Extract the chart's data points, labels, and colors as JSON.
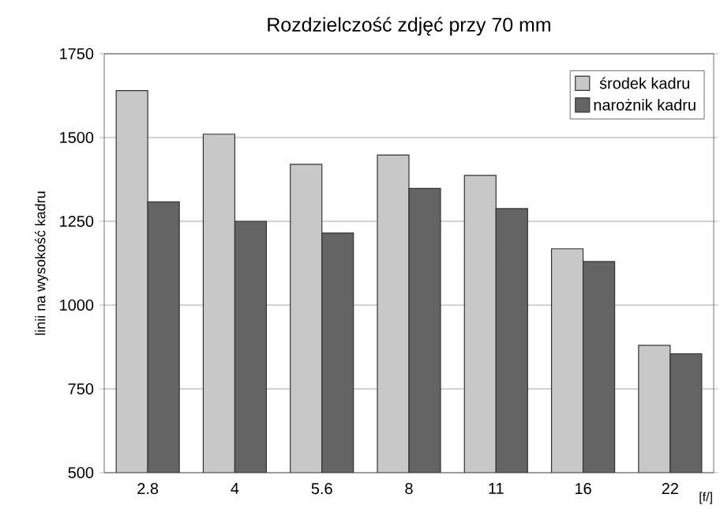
{
  "chart_data": {
    "type": "bar",
    "title": "Rozdzielczość zdjęć przy 70 mm",
    "xlabel": "[f/]",
    "ylabel": "linii na wysokość kadru",
    "categories": [
      "2.8",
      "4",
      "5.6",
      "8",
      "11",
      "16",
      "22"
    ],
    "series": [
      {
        "name": "środek kadru",
        "color": "#c8c8c8",
        "values": [
          1640,
          1510,
          1420,
          1448,
          1387,
          1168,
          880
        ]
      },
      {
        "name": "narożnik kadru",
        "color": "#646464",
        "values": [
          1308,
          1250,
          1215,
          1348,
          1288,
          1130,
          855
        ]
      }
    ],
    "ylim": [
      500,
      1750
    ],
    "yticks": [
      500,
      750,
      1000,
      1250,
      1500,
      1750
    ],
    "grid": "y",
    "legend": "top right"
  }
}
